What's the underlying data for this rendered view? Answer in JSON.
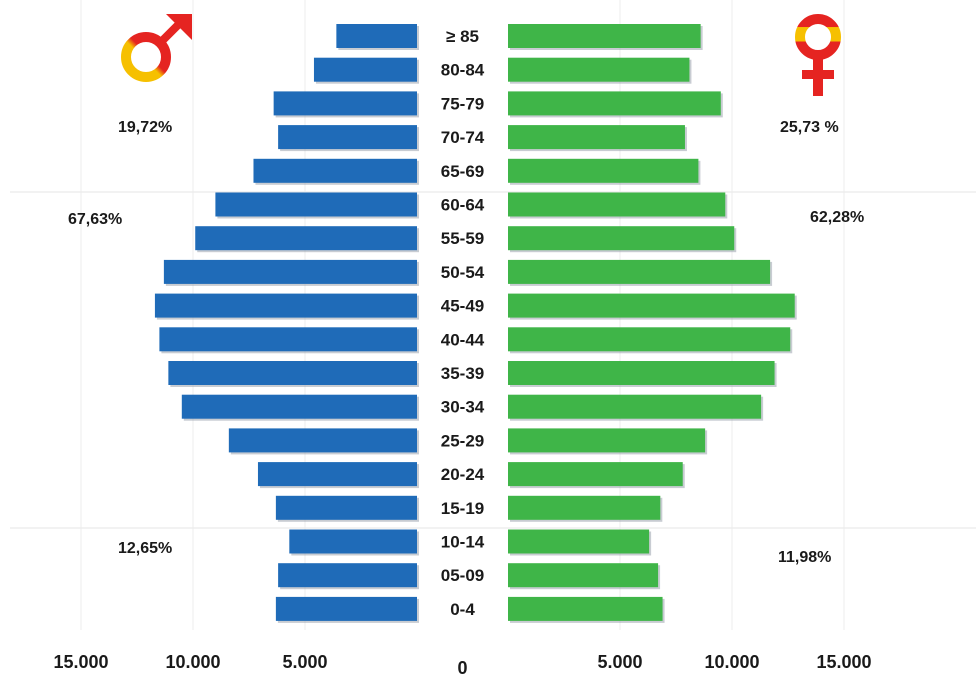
{
  "chart_data": {
    "type": "bar",
    "orientation": "horizontal",
    "layout": "population-pyramid",
    "categories": [
      "≥ 85",
      "80-84",
      "75-79",
      "70-74",
      "65-69",
      "60-64",
      "55-59",
      "50-54",
      "45-49",
      "40-44",
      "35-39",
      "30-34",
      "25-29",
      "20-24",
      "15-19",
      "10-14",
      "05-09",
      "0-4"
    ],
    "series": [
      {
        "side": "left",
        "color": "#1f6bb8",
        "values": [
          3600,
          4600,
          6400,
          6200,
          7300,
          9000,
          9900,
          11300,
          11700,
          11500,
          11100,
          10500,
          8400,
          7100,
          6300,
          5700,
          6200,
          6300
        ]
      },
      {
        "side": "right",
        "color": "#3fb548",
        "values": [
          8600,
          8100,
          9500,
          7900,
          8500,
          9700,
          10100,
          11700,
          12800,
          12600,
          11900,
          11300,
          8800,
          7800,
          6800,
          6300,
          6700,
          6900
        ]
      }
    ],
    "x_ticks_left": [
      "15.000",
      "10.000",
      "5.000"
    ],
    "x_ticks_right": [
      "5.000",
      "10.000",
      "15.000"
    ],
    "x_tick_values": [
      15000,
      10000,
      5000
    ],
    "x_zero_label": "0",
    "xlim": [
      0,
      15000
    ],
    "grid": "vertical gridlines",
    "annotations": {
      "male_elderly": "19,72%",
      "male_working": "67,63%",
      "male_young": "12,65%",
      "female_elderly": "25,73 %",
      "female_working": "62,28%",
      "female_young": "11,98%"
    }
  },
  "icons": {
    "male": "male-symbol-icon",
    "female": "female-symbol-icon",
    "colors": {
      "red": "#e52421",
      "yellow": "#f6c000"
    }
  }
}
